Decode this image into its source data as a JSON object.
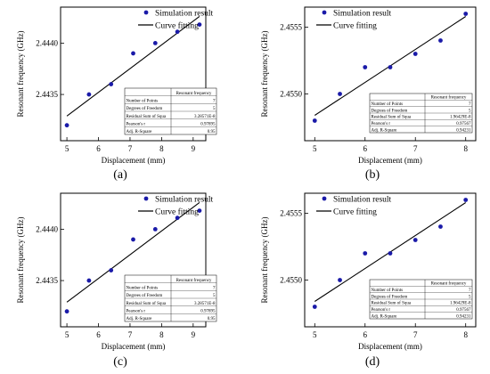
{
  "figure": {
    "legend": {
      "marker_label": "Simulation result",
      "line_label": "Curve fitting"
    },
    "stats_header": "Resonant frequency",
    "stats_labels": [
      "Number of Points",
      "Degrees of Freedom",
      "Residual Sum of Squa",
      "Pearson's r",
      "Adj. R-Square"
    ],
    "marker_color": "#1a1aa8"
  },
  "chart_data": [
    {
      "type": "scatter",
      "panel_label": "(a)",
      "xlabel": "Displacement (mm)",
      "ylabel": "Resonant frequency (GHz)",
      "xlim": [
        4.8,
        9.4
      ],
      "ylim": [
        2.44305,
        2.44435
      ],
      "xticks": [
        5,
        6,
        7,
        8,
        9
      ],
      "yticks": [
        2.4435,
        2.444
      ],
      "ytick_labels": [
        "2.4435",
        "2.4440"
      ],
      "series": [
        {
          "name": "Simulation result",
          "type": "scatter",
          "x": [
            5,
            5.7,
            6.4,
            7.1,
            7.8,
            8.5,
            9.2
          ],
          "y": [
            2.4432,
            2.4435,
            2.4436,
            2.4439,
            2.444,
            2.44411,
            2.44418
          ]
        },
        {
          "name": "Curve fitting",
          "type": "line",
          "x": [
            5,
            9.2
          ],
          "y": [
            2.44329,
            2.44426
          ]
        }
      ],
      "stats": [
        "7",
        "5",
        "3.28571E-8",
        "0.97895",
        "0.95"
      ]
    },
    {
      "type": "scatter",
      "panel_label": "(b)",
      "xlabel": "Displacement (mm)",
      "ylabel": "Resonant frequency (GHz)",
      "xlim": [
        4.8,
        8.2
      ],
      "ylim": [
        2.45465,
        2.45565
      ],
      "xticks": [
        5,
        6,
        7,
        8
      ],
      "yticks": [
        2.455,
        2.4555
      ],
      "ytick_labels": [
        "2.4550",
        "2.4555"
      ],
      "series": [
        {
          "name": "Simulation result",
          "type": "scatter",
          "x": [
            5,
            5.5,
            6,
            6.5,
            7,
            7.5,
            8
          ],
          "y": [
            2.4548,
            2.455,
            2.4552,
            2.4552,
            2.4553,
            2.4554,
            2.4556
          ]
        },
        {
          "name": "Curve fitting",
          "type": "line",
          "x": [
            5,
            8
          ],
          "y": [
            2.45484,
            2.45558
          ]
        }
      ],
      "stats": [
        "7",
        "5",
        "1.96429E-8",
        "0.97567",
        "0.94231"
      ]
    },
    {
      "type": "scatter",
      "panel_label": "(c)",
      "xlabel": "Displacement (mm)",
      "ylabel": "Resonant frequency (GHz)",
      "xlim": [
        4.8,
        9.4
      ],
      "ylim": [
        2.44305,
        2.44435
      ],
      "xticks": [
        5,
        6,
        7,
        8,
        9
      ],
      "yticks": [
        2.4435,
        2.444
      ],
      "ytick_labels": [
        "2.4435",
        "2.4440"
      ],
      "series": [
        {
          "name": "Simulation result",
          "type": "scatter",
          "x": [
            5,
            5.7,
            6.4,
            7.1,
            7.8,
            8.5,
            9.2
          ],
          "y": [
            2.4432,
            2.4435,
            2.4436,
            2.4439,
            2.444,
            2.44411,
            2.44418
          ]
        },
        {
          "name": "Curve fitting",
          "type": "line",
          "x": [
            5,
            9.2
          ],
          "y": [
            2.44329,
            2.44426
          ]
        }
      ],
      "stats": [
        "7",
        "5",
        "3.28571E-8",
        "0.97895",
        "0.95"
      ]
    },
    {
      "type": "scatter",
      "panel_label": "(d)",
      "xlabel": "Displacement (mm)",
      "ylabel": "Resonant frequency (GHz)",
      "xlim": [
        4.8,
        8.2
      ],
      "ylim": [
        2.45465,
        2.45565
      ],
      "xticks": [
        5,
        6,
        7,
        8
      ],
      "yticks": [
        2.455,
        2.4555
      ],
      "ytick_labels": [
        "2.4550",
        "2.4555"
      ],
      "series": [
        {
          "name": "Simulation result",
          "type": "scatter",
          "x": [
            5,
            5.5,
            6,
            6.5,
            7,
            7.5,
            8
          ],
          "y": [
            2.4548,
            2.455,
            2.4552,
            2.4552,
            2.4553,
            2.4554,
            2.4556
          ]
        },
        {
          "name": "Curve fitting",
          "type": "line",
          "x": [
            5,
            8
          ],
          "y": [
            2.45484,
            2.45558
          ]
        }
      ],
      "stats": [
        "7",
        "5",
        "1.96429E-8",
        "0.97567",
        "0.94231"
      ]
    }
  ]
}
